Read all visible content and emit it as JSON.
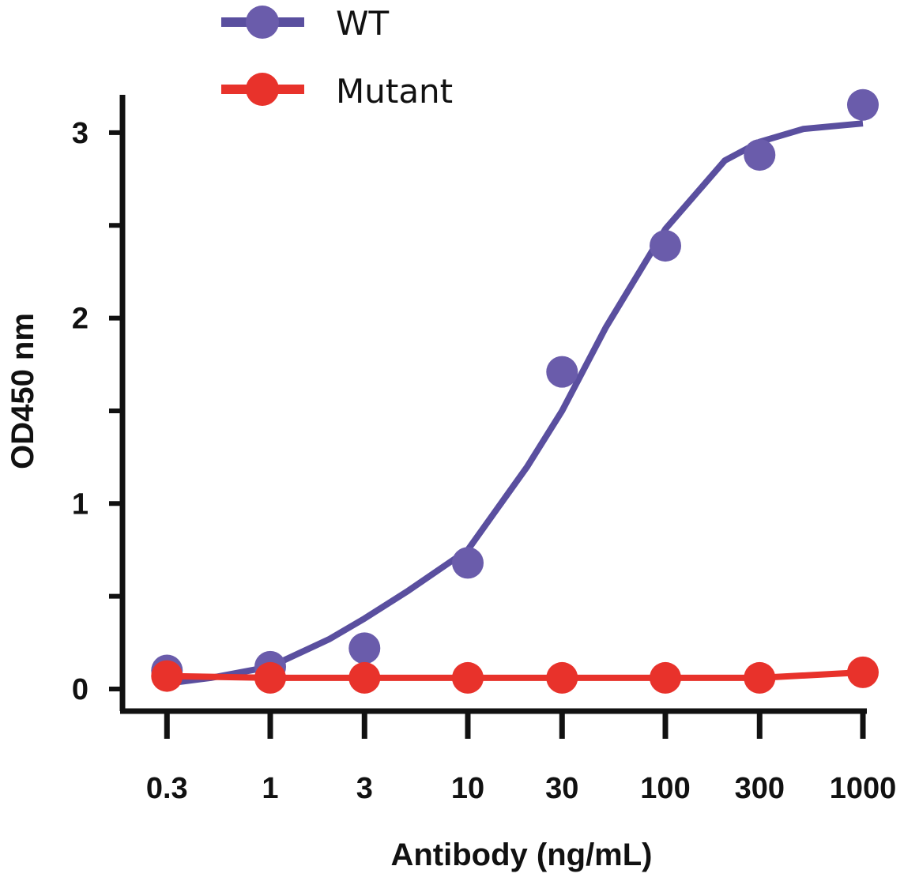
{
  "chart_data": {
    "type": "line",
    "title": "",
    "xlabel": "Antibody (ng/mL)",
    "ylabel": "OD450 nm",
    "x_scale": "log",
    "x_ticks": [
      0.3,
      1,
      3,
      10,
      30,
      100,
      300,
      1000
    ],
    "x_tick_labels": [
      "0.3",
      "1",
      "3",
      "10",
      "30",
      "100",
      "300",
      "1000"
    ],
    "y_ticks": [
      0,
      1,
      2,
      3
    ],
    "y_tick_labels": [
      "0",
      "1",
      "2",
      "3"
    ],
    "ylim": [
      0,
      3.2
    ],
    "grid": false,
    "legend_position": "top",
    "x": [
      0.3,
      1,
      3,
      10,
      30,
      100,
      300,
      1000
    ],
    "series": [
      {
        "name": "WT",
        "color": "#6a5cab",
        "line_color": "#5a4f9f",
        "values": [
          0.1,
          0.12,
          0.22,
          0.68,
          1.71,
          2.39,
          2.88,
          3.15
        ],
        "fit_curve": {
          "x": [
            0.3,
            0.5,
            1,
            2,
            3,
            5,
            10,
            20,
            30,
            50,
            100,
            200,
            300,
            500,
            1000
          ],
          "y": [
            0.03,
            0.06,
            0.12,
            0.27,
            0.38,
            0.53,
            0.75,
            1.2,
            1.5,
            1.95,
            2.48,
            2.85,
            2.95,
            3.02,
            3.05
          ]
        }
      },
      {
        "name": "Mutant",
        "color": "#e8322b",
        "line_color": "#e8322b",
        "values": [
          0.07,
          0.06,
          0.06,
          0.06,
          0.06,
          0.06,
          0.06,
          0.09
        ]
      }
    ]
  }
}
